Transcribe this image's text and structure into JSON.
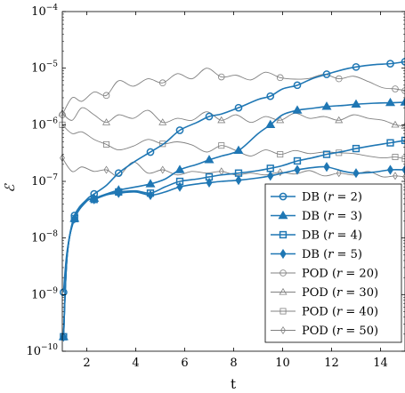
{
  "chart_data": {
    "type": "line",
    "xlabel": "t",
    "ylabel": "ℰ",
    "xlim": [
      1,
      15
    ],
    "ylim_exponent": [
      -10,
      -4
    ],
    "yscale": "log",
    "x_ticks": [
      2,
      4,
      6,
      8,
      10,
      12,
      14
    ],
    "y_ticks": [
      {
        "base": "10",
        "exp": "−4"
      },
      {
        "base": "10",
        "exp": "−5"
      },
      {
        "base": "10",
        "exp": "−6"
      },
      {
        "base": "10",
        "exp": "−7"
      },
      {
        "base": "10",
        "exp": "−8"
      },
      {
        "base": "10",
        "exp": "−9"
      },
      {
        "base": "10",
        "exp": "−10"
      }
    ],
    "legend_position": "bottom-right",
    "series": [
      {
        "name": "DB (r = 2)",
        "label_main": "DB (",
        "label_var": "r",
        "label_rest": " = 2)",
        "group": "DB",
        "marker": "circle",
        "color": "#1f77b4",
        "x": [
          1.05,
          1.2,
          1.5,
          2.0,
          2.3,
          2.8,
          3.3,
          4.0,
          4.6,
          5.2,
          5.8,
          6.5,
          7.0,
          7.5,
          8.2,
          9.0,
          9.5,
          10.0,
          10.6,
          11.2,
          11.8,
          12.5,
          13.0,
          13.7,
          14.4,
          15.0
        ],
        "y": [
          1.1e-09,
          6e-09,
          2.5e-08,
          4.8e-08,
          6e-08,
          8.5e-08,
          1.4e-07,
          2.3e-07,
          3.3e-07,
          4.8e-07,
          8e-07,
          1.1e-06,
          1.4e-06,
          1.55e-06,
          2e-06,
          2.8e-06,
          3.2e-06,
          4.3e-06,
          5e-06,
          6.5e-06,
          7.8e-06,
          9.5e-06,
          1.05e-05,
          1.15e-05,
          1.2e-05,
          1.3e-05
        ]
      },
      {
        "name": "DB (r = 3)",
        "label_main": "DB (",
        "label_var": "r",
        "label_rest": " = 3)",
        "group": "DB",
        "marker": "triangle",
        "color": "#1f77b4",
        "x": [
          1.05,
          1.2,
          1.5,
          2.0,
          2.3,
          2.8,
          3.3,
          4.0,
          4.6,
          5.2,
          5.8,
          6.5,
          7.0,
          7.5,
          8.2,
          9.0,
          9.5,
          10.0,
          10.6,
          11.2,
          11.8,
          12.5,
          13.0,
          13.7,
          14.4,
          15.0
        ],
        "y": [
          1.8e-10,
          5e-09,
          2.2e-08,
          4.5e-08,
          5e-08,
          6e-08,
          7e-08,
          8e-08,
          9e-08,
          1.1e-07,
          1.6e-07,
          2e-07,
          2.4e-07,
          2.8e-07,
          3.5e-07,
          7e-07,
          1e-06,
          1.5e-06,
          1.8e-06,
          1.95e-06,
          2.1e-06,
          2.2e-06,
          2.3e-06,
          2.4e-06,
          2.45e-06,
          2.5e-06
        ]
      },
      {
        "name": "DB (r = 4)",
        "label_main": "DB (",
        "label_var": "r",
        "label_rest": " = 4)",
        "group": "DB",
        "marker": "square",
        "color": "#1f77b4",
        "x": [
          1.05,
          1.2,
          1.5,
          2.0,
          2.3,
          2.8,
          3.3,
          4.0,
          4.6,
          5.2,
          5.8,
          6.5,
          7.0,
          7.5,
          8.2,
          9.0,
          9.5,
          10.0,
          10.6,
          11.2,
          11.8,
          12.5,
          13.0,
          13.7,
          14.4,
          15.0
        ],
        "y": [
          1.8e-10,
          5e-09,
          2.2e-08,
          4.5e-08,
          4.8e-08,
          5.8e-08,
          6.5e-08,
          6.8e-08,
          6.2e-08,
          8e-08,
          1e-07,
          1.1e-07,
          1.2e-07,
          1.3e-07,
          1.4e-07,
          1.55e-07,
          1.7e-07,
          1.9e-07,
          2.3e-07,
          2.6e-07,
          3e-07,
          3.4e-07,
          3.8e-07,
          4.3e-07,
          4.8e-07,
          5.3e-07
        ]
      },
      {
        "name": "DB (r = 5)",
        "label_main": "DB (",
        "label_var": "r",
        "label_rest": " = 5)",
        "group": "DB",
        "marker": "diamond",
        "color": "#1f77b4",
        "x": [
          1.05,
          1.2,
          1.5,
          2.0,
          2.3,
          2.8,
          3.3,
          4.0,
          4.6,
          5.2,
          5.8,
          6.5,
          7.0,
          7.5,
          8.2,
          9.0,
          9.5,
          10.0,
          10.6,
          11.2,
          11.8,
          12.5,
          13.0,
          13.7,
          14.4,
          15.0
        ],
        "y": [
          1.8e-10,
          5e-09,
          2.2e-08,
          4.5e-08,
          4.8e-08,
          5.8e-08,
          6.2e-08,
          6.5e-08,
          5.7e-08,
          6.5e-08,
          8e-08,
          9e-08,
          9.5e-08,
          1e-07,
          1.05e-07,
          1.15e-07,
          1.25e-07,
          1.4e-07,
          1.6e-07,
          1.75e-07,
          1.8e-07,
          1.5e-07,
          1.4e-07,
          1.45e-07,
          1.6e-07,
          1.6e-07
        ]
      },
      {
        "name": "POD (r = 20)",
        "label_main": "POD (",
        "label_var": "r",
        "label_rest": " = 20)",
        "group": "POD",
        "marker": "circle",
        "color": "#808080",
        "x": [
          1.0,
          1.4,
          1.8,
          2.3,
          2.8,
          3.3,
          3.9,
          4.5,
          5.1,
          5.7,
          6.3,
          6.9,
          7.5,
          8.1,
          8.7,
          9.3,
          9.9,
          10.5,
          11.1,
          11.7,
          12.3,
          12.9,
          13.5,
          14.1,
          14.6,
          15.0
        ],
        "y": [
          1.5e-06,
          3e-06,
          2.6e-06,
          3.8e-06,
          3.3e-06,
          6e-06,
          4.8e-06,
          6.5e-06,
          5.5e-06,
          8e-06,
          6.5e-06,
          1e-05,
          7e-06,
          7.5e-06,
          6.2e-06,
          8.5e-06,
          6.8e-06,
          6.4e-06,
          6.6e-06,
          7.8e-06,
          6.5e-06,
          7.2e-06,
          5.8e-06,
          4.5e-06,
          4.3e-06,
          4e-06
        ]
      },
      {
        "name": "POD (r = 30)",
        "label_main": "POD (",
        "label_var": "r",
        "label_rest": " = 30)",
        "group": "POD",
        "marker": "triangle",
        "color": "#808080",
        "x": [
          1.0,
          1.4,
          1.8,
          2.3,
          2.8,
          3.3,
          3.9,
          4.5,
          5.1,
          5.7,
          6.3,
          6.9,
          7.5,
          8.1,
          8.7,
          9.3,
          9.9,
          10.5,
          11.1,
          11.7,
          12.3,
          12.9,
          13.5,
          14.1,
          14.6,
          15.0
        ],
        "y": [
          1.6e-06,
          1.2e-06,
          2e-06,
          1.5e-06,
          1.1e-06,
          1.5e-06,
          1.3e-06,
          1.8e-06,
          1.1e-06,
          1.3e-06,
          1.2e-06,
          1.7e-06,
          1.2e-06,
          1.5e-06,
          1.1e-06,
          1.4e-06,
          1.2e-06,
          1.6e-06,
          1.3e-06,
          1.4e-06,
          1.2e-06,
          1.5e-06,
          1.3e-06,
          1.2e-06,
          1e-06,
          9.5e-07
        ]
      },
      {
        "name": "POD (r = 40)",
        "label_main": "POD (",
        "label_var": "r",
        "label_rest": " = 40)",
        "group": "POD",
        "marker": "square",
        "color": "#808080",
        "x": [
          1.0,
          1.4,
          1.8,
          2.3,
          2.8,
          3.3,
          3.9,
          4.5,
          5.1,
          5.7,
          6.3,
          6.9,
          7.5,
          8.1,
          8.7,
          9.3,
          9.9,
          10.5,
          11.1,
          11.7,
          12.3,
          12.9,
          13.5,
          14.1,
          14.6,
          15.0
        ],
        "y": [
          1e-06,
          7e-07,
          7.5e-07,
          5.5e-07,
          4.5e-07,
          3.6e-07,
          4.2e-07,
          5.5e-07,
          4.6e-07,
          5e-07,
          4.4e-07,
          3.3e-07,
          4.3e-07,
          3.5e-07,
          2.8e-07,
          3.6e-07,
          3e-07,
          3.5e-07,
          3.1e-07,
          3.3e-07,
          3.2e-07,
          3.1e-07,
          2.8e-07,
          2.6e-07,
          2.7e-07,
          2.5e-07
        ]
      },
      {
        "name": "POD (r = 50)",
        "label_main": "POD (",
        "label_var": "r",
        "label_rest": " = 50)",
        "group": "POD",
        "marker": "diamond",
        "color": "#808080",
        "x": [
          1.0,
          1.4,
          1.8,
          2.3,
          2.8,
          3.3,
          3.9,
          4.5,
          5.1,
          5.7,
          6.3,
          6.9,
          7.5,
          8.1,
          8.7,
          9.3,
          9.9,
          10.5,
          11.1,
          11.7,
          12.3,
          12.9,
          13.5,
          14.1,
          14.6,
          15.0
        ],
        "y": [
          2.6e-07,
          1.5e-07,
          1.8e-07,
          1.5e-07,
          1.6e-07,
          1.25e-07,
          2.2e-07,
          1.4e-07,
          1.6e-07,
          1.3e-07,
          1.5e-07,
          1.4e-07,
          1.5e-07,
          1.3e-07,
          1.4e-07,
          1.3e-07,
          1.45e-07,
          1.35e-07,
          1.55e-07,
          1.25e-07,
          1.4e-07,
          1.3e-07,
          1.5e-07,
          1.2e-07,
          1.25e-07,
          1.2e-07
        ]
      }
    ]
  }
}
